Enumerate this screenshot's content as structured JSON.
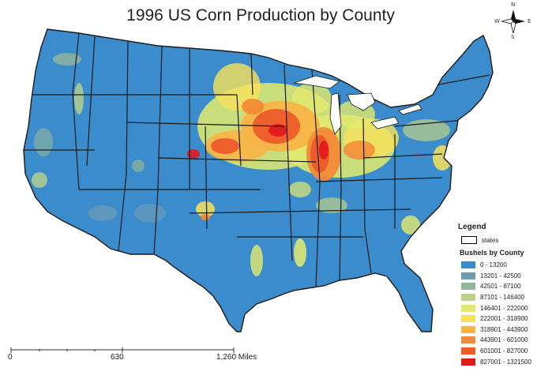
{
  "title": "1996 US Corn Production by County",
  "compass": {
    "n": "N",
    "s": "S",
    "e": "E",
    "w": "W"
  },
  "legend": {
    "title": "Legend",
    "states_label": "states",
    "bins_title": "Bushels by County",
    "bins": [
      {
        "label": "0 - 13200",
        "color": "#3a8ccc"
      },
      {
        "label": "13201 - 42500",
        "color": "#6f9cb5"
      },
      {
        "label": "42501 - 87100",
        "color": "#93b59a"
      },
      {
        "label": "87101 - 146400",
        "color": "#bcd289"
      },
      {
        "label": "146401 - 222000",
        "color": "#e3eb6e"
      },
      {
        "label": "222001 - 318900",
        "color": "#f7e25a"
      },
      {
        "label": "318901 - 443900",
        "color": "#f8b446"
      },
      {
        "label": "443901 - 601000",
        "color": "#f48a36"
      },
      {
        "label": "601001 - 827000",
        "color": "#ec5b2a"
      },
      {
        "label": "827001 - 1321500",
        "color": "#e3181c"
      }
    ]
  },
  "scale": {
    "labels": [
      "0",
      "630",
      "1,260 Miles"
    ]
  },
  "colors": {
    "base": "#3a8ccc",
    "border": "#1a1a1a"
  }
}
